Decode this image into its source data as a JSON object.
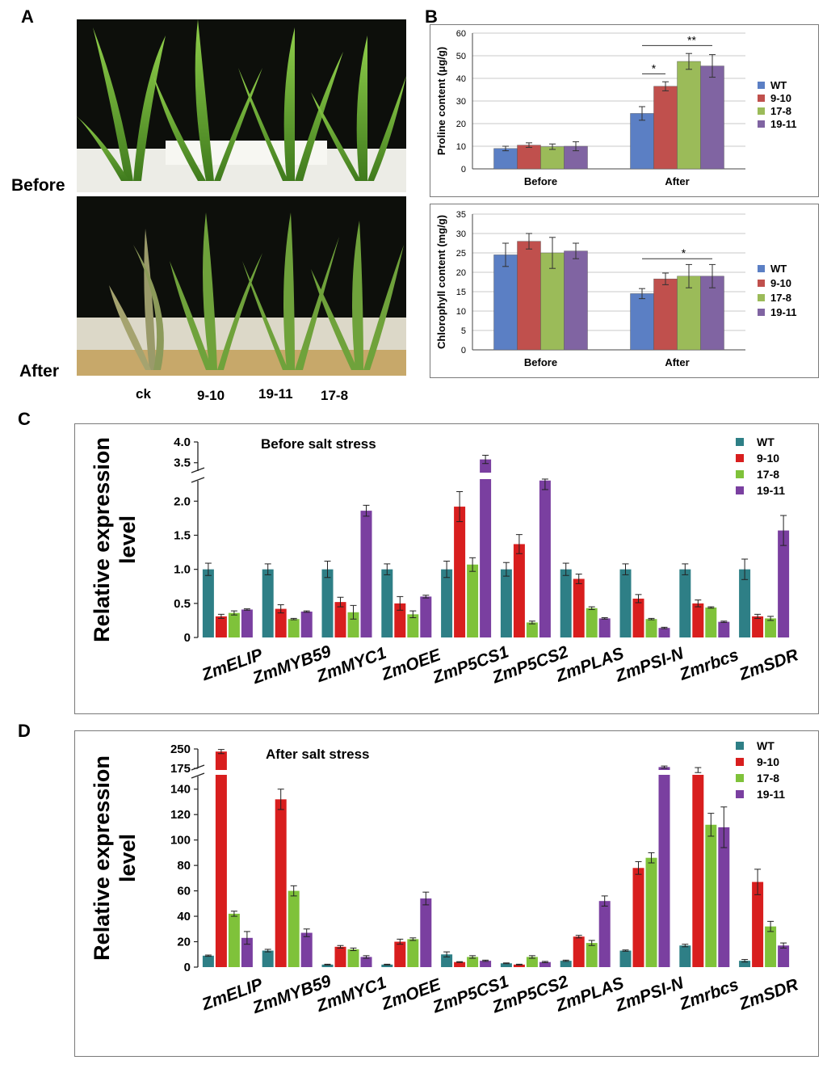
{
  "figure": {
    "panel_labels": [
      "A",
      "B",
      "C",
      "D"
    ],
    "photo": {
      "before_label": "Before",
      "after_label": "After",
      "genotypes": [
        "ck",
        "9-10",
        "19-11",
        "17-8"
      ]
    }
  },
  "colors": {
    "B": {
      "WT": "#5b7fc4",
      "9-10": "#c0504d",
      "17-8": "#9bbb59",
      "19-11": "#8064a2"
    },
    "CD": {
      "WT": "#2e7f86",
      "9-10": "#d81e1e",
      "17-8": "#7fc23a",
      "19-11": "#7a3fa0"
    }
  },
  "chart_data": [
    {
      "id": "B-proline",
      "type": "bar",
      "title": "",
      "ylabel": "Proline content (μg/g)",
      "xlabel": "",
      "ylim": [
        0,
        60
      ],
      "yticks": [
        "0",
        "10",
        "20",
        "30",
        "40",
        "50",
        "60"
      ],
      "categories": [
        "Before",
        "After"
      ],
      "legend": [
        "WT",
        "9-10",
        "17-8",
        "19-11"
      ],
      "series": [
        {
          "name": "WT",
          "values": [
            9,
            24.5
          ],
          "errors": [
            1,
            3
          ]
        },
        {
          "name": "9-10",
          "values": [
            10.5,
            36.5
          ],
          "errors": [
            1,
            2
          ]
        },
        {
          "name": "17-8",
          "values": [
            9.8,
            47.5
          ],
          "errors": [
            1.2,
            3.5
          ]
        },
        {
          "name": "19-11",
          "values": [
            10,
            45.5
          ],
          "errors": [
            2,
            5
          ]
        }
      ],
      "annotations": [
        "*",
        "**"
      ]
    },
    {
      "id": "B-chlorophyll",
      "type": "bar",
      "title": "",
      "ylabel": "Chlorophyll content (mg/g)",
      "xlabel": "",
      "ylim": [
        0,
        35
      ],
      "yticks": [
        "0",
        "5",
        "10",
        "15",
        "20",
        "25",
        "30",
        "35"
      ],
      "categories": [
        "Before",
        "After"
      ],
      "legend": [
        "WT",
        "9-10",
        "17-8",
        "19-11"
      ],
      "series": [
        {
          "name": "WT",
          "values": [
            24.5,
            14.5
          ],
          "errors": [
            3,
            1.3
          ]
        },
        {
          "name": "9-10",
          "values": [
            28,
            18.3
          ],
          "errors": [
            2,
            1.5
          ]
        },
        {
          "name": "17-8",
          "values": [
            25,
            19
          ],
          "errors": [
            4,
            3
          ]
        },
        {
          "name": "19-11",
          "values": [
            25.5,
            19
          ],
          "errors": [
            2,
            3
          ]
        }
      ],
      "annotations": [
        "*"
      ]
    },
    {
      "id": "C",
      "type": "bar",
      "title": "Before salt stress",
      "ylabel": "Relative expression level",
      "xlabel": "",
      "ylim": [
        0,
        4
      ],
      "axis_break": {
        "lower_max": 2.3,
        "upper_min": 3.3
      },
      "yticks": [
        "0",
        "0.5",
        "1.0",
        "1.5",
        "2.0",
        "3.5",
        "4.0"
      ],
      "categories": [
        "ZmELIP",
        "ZmMYB59",
        "ZmMYC1",
        "ZmOEE",
        "ZmP5CS1",
        "ZmP5CS2",
        "ZmPLAS",
        "ZmPSI-N",
        "Zmrbcs",
        "ZmSDR"
      ],
      "legend": [
        "WT",
        "9-10",
        "17-8",
        "19-11"
      ],
      "series": [
        {
          "name": "WT",
          "values": [
            1,
            1,
            1,
            1,
            1,
            1,
            1,
            1,
            1,
            1
          ],
          "errors": [
            0.09,
            0.08,
            0.12,
            0.08,
            0.12,
            0.1,
            0.09,
            0.08,
            0.08,
            0.15
          ]
        },
        {
          "name": "9-10",
          "values": [
            0.31,
            0.42,
            0.52,
            0.5,
            1.92,
            1.37,
            0.86,
            0.57,
            0.5,
            0.31
          ],
          "errors": [
            0.03,
            0.06,
            0.07,
            0.1,
            0.22,
            0.14,
            0.07,
            0.06,
            0.05,
            0.03
          ]
        },
        {
          "name": "17-8",
          "values": [
            0.36,
            0.27,
            0.37,
            0.34,
            1.07,
            0.22,
            0.43,
            0.27,
            0.44,
            0.28
          ],
          "errors": [
            0.03,
            0.01,
            0.1,
            0.05,
            0.1,
            0.02,
            0.02,
            0.01,
            0.01,
            0.03
          ]
        },
        {
          "name": "19-11",
          "values": [
            0.41,
            0.38,
            1.86,
            0.6,
            3.58,
            2.32,
            0.28,
            0.14,
            0.23,
            1.57
          ],
          "errors": [
            0.01,
            0.01,
            0.08,
            0.02,
            0.1,
            0.15,
            0.01,
            0.01,
            0.01,
            0.22
          ]
        }
      ]
    },
    {
      "id": "D",
      "type": "bar",
      "title": "After salt stress",
      "ylabel": "Relative expression level",
      "xlabel": "",
      "ylim": [
        0,
        250
      ],
      "axis_break": {
        "lower_max": 150,
        "upper_min": 175
      },
      "yticks": [
        "0",
        "20",
        "40",
        "60",
        "80",
        "100",
        "120",
        "140",
        "175",
        "250"
      ],
      "categories": [
        "ZmELIP",
        "ZmMYB59",
        "ZmMYC1",
        "ZmOEE",
        "ZmP5CS1",
        "ZmP5CS2",
        "ZmPLAS",
        "ZmPSI-N",
        "Zmrbcs",
        "ZmSDR"
      ],
      "legend": [
        "WT",
        "9-10",
        "17-8",
        "19-11"
      ],
      "series": [
        {
          "name": "WT",
          "values": [
            9,
            13,
            2,
            2,
            10,
            3,
            5,
            13,
            17,
            5
          ],
          "errors": [
            0.5,
            1,
            0.3,
            0.3,
            2,
            0.3,
            0.5,
            0.5,
            1,
            1
          ]
        },
        {
          "name": "9-10",
          "values": [
            240,
            132,
            16,
            20,
            4,
            2,
            24,
            78,
            170,
            67
          ],
          "errors": [
            8,
            8,
            1,
            2,
            0.3,
            0.3,
            1,
            5,
            8,
            10
          ]
        },
        {
          "name": "17-8",
          "values": [
            42,
            60,
            14,
            22,
            8,
            8,
            19,
            86,
            112,
            32
          ],
          "errors": [
            2,
            4,
            1,
            1,
            1,
            1,
            2,
            4,
            9,
            4
          ]
        },
        {
          "name": "19-11",
          "values": [
            23,
            27,
            8,
            54,
            5,
            4,
            52,
            180,
            110,
            17
          ],
          "errors": [
            5,
            3,
            1,
            5,
            0.5,
            0.5,
            4,
            4,
            16,
            2
          ]
        }
      ]
    }
  ]
}
